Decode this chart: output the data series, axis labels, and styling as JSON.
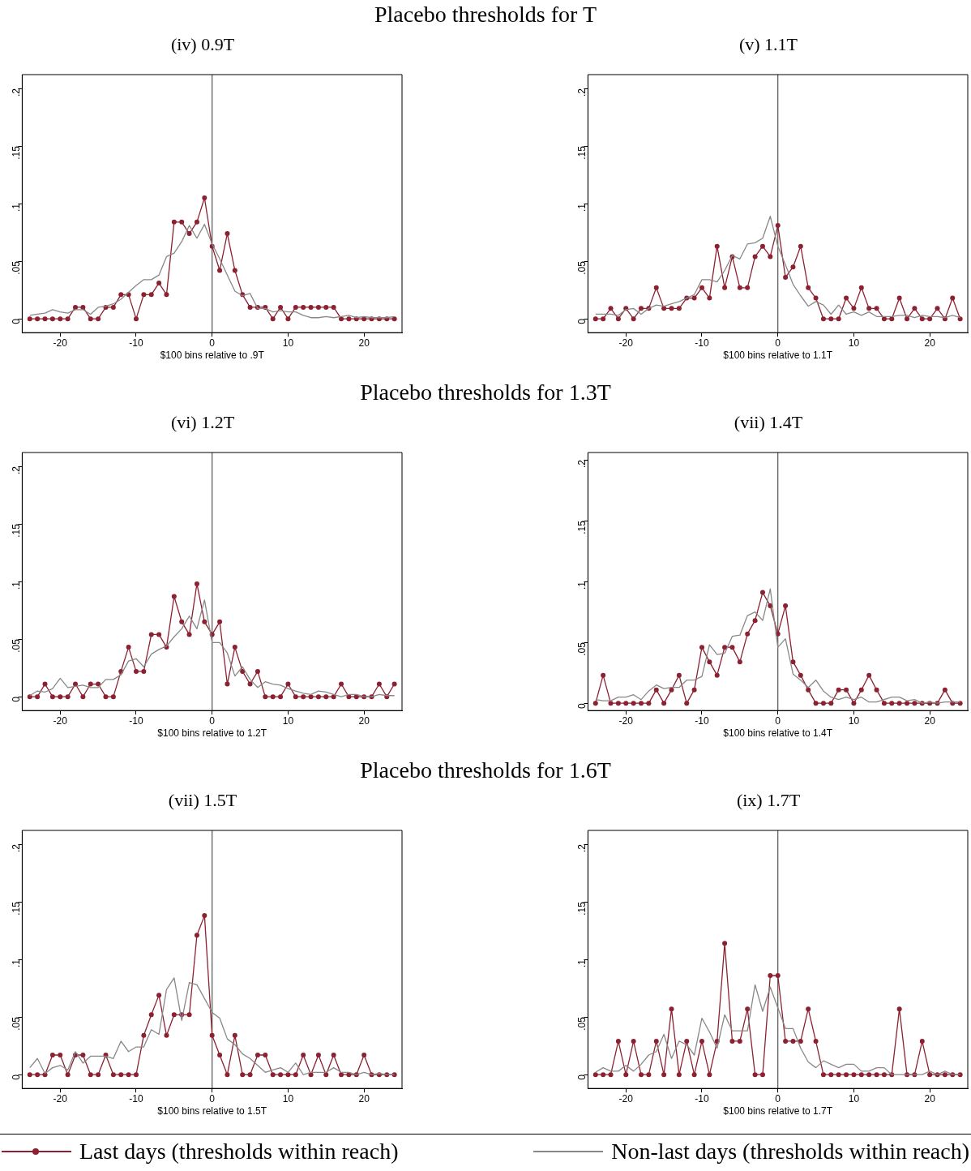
{
  "chart_data": [
    {
      "type": "line",
      "title": "(iv) 0.9T",
      "annotations": [
        "Placebo thresholds for T"
      ],
      "xlabel": "$100 bins relative to .9T",
      "legend": "bottom",
      "xlim": [
        -25,
        25
      ],
      "xticks": [
        -20,
        -10,
        0,
        10,
        20
      ],
      "ylim": [
        -0.012,
        0.212
      ],
      "yticks": [
        {
          "value": 0,
          "label": "0"
        },
        {
          "value": 0.05,
          "label": ".05"
        },
        {
          "value": 0.1,
          "label": ".1"
        },
        {
          "value": 0.15,
          "label": ".15"
        },
        {
          "value": 0.2,
          "label": ".2"
        }
      ],
      "grid": false,
      "ref_lines": [
        {
          "axis": "x",
          "value": 0,
          "color": "#555555"
        }
      ],
      "x": [
        -24,
        -23,
        -22,
        -21,
        -20,
        -19,
        -18,
        -17,
        -16,
        -15,
        -14,
        -13,
        -12,
        -11,
        -10,
        -9,
        -8,
        -7,
        -6,
        -5,
        -4,
        -3,
        -2,
        -1,
        0,
        1,
        2,
        3,
        4,
        5,
        6,
        7,
        8,
        9,
        10,
        11,
        12,
        13,
        14,
        15,
        16,
        17,
        18,
        19,
        20,
        21,
        22,
        23,
        24
      ],
      "series": [
        {
          "name": "Non-last days (thresholds within reach)",
          "color": "#888888",
          "marker": "none",
          "values": [
            0.003,
            0.004,
            0.005,
            0.008,
            0.006,
            0.005,
            0.008,
            0.008,
            0.004,
            0.01,
            0.011,
            0.013,
            0.017,
            0.023,
            0.029,
            0.034,
            0.034,
            0.038,
            0.054,
            0.057,
            0.067,
            0.081,
            0.07,
            0.082,
            0.065,
            0.052,
            0.038,
            0.024,
            0.02,
            0.022,
            0.009,
            0.009,
            0.006,
            0.007,
            0.006,
            0.006,
            0.003,
            0.001,
            0.001,
            0.002,
            0.001,
            0.002,
            0.003,
            0.001,
            0.002,
            0.001,
            0.001,
            0.001,
            0.002
          ]
        },
        {
          "name": "Last days (thresholds within reach)",
          "color": "#8b2131",
          "marker": "circle",
          "values": [
            0,
            0,
            0,
            0,
            0,
            0,
            0.01,
            0.01,
            0,
            0,
            0.01,
            0.01,
            0.021,
            0.021,
            0,
            0.021,
            0.021,
            0.031,
            0.021,
            0.084,
            0.084,
            0.074,
            0.084,
            0.105,
            0.063,
            0.042,
            0.074,
            0.042,
            0.021,
            0.01,
            0.01,
            0.01,
            0,
            0.01,
            0,
            0.01,
            0.01,
            0.01,
            0.01,
            0.01,
            0.01,
            0,
            0,
            0,
            0,
            0,
            0,
            0,
            0
          ]
        }
      ]
    },
    {
      "type": "line",
      "title": "(v) 1.1T",
      "xlabel": "$100 bins relative to 1.1T",
      "xlim": [
        -25,
        25
      ],
      "xticks": [
        -20,
        -10,
        0,
        10,
        20
      ],
      "ylim": [
        -0.012,
        0.212
      ],
      "yticks": [
        {
          "value": 0,
          "label": "0"
        },
        {
          "value": 0.05,
          "label": ".05"
        },
        {
          "value": 0.1,
          "label": ".1"
        },
        {
          "value": 0.15,
          "label": ".15"
        },
        {
          "value": 0.2,
          "label": ".2"
        }
      ],
      "grid": false,
      "ref_lines": [
        {
          "axis": "x",
          "value": 0,
          "color": "#555555"
        }
      ],
      "x": [
        -24,
        -23,
        -22,
        -21,
        -20,
        -19,
        -18,
        -17,
        -16,
        -15,
        -14,
        -13,
        -12,
        -11,
        -10,
        -9,
        -8,
        -7,
        -6,
        -5,
        -4,
        -3,
        -2,
        -1,
        0,
        1,
        2,
        3,
        4,
        5,
        6,
        7,
        8,
        9,
        10,
        11,
        12,
        13,
        14,
        15,
        16,
        17,
        18,
        19,
        20,
        21,
        22,
        23,
        24
      ],
      "series": [
        {
          "color": "#888888",
          "marker": "none",
          "values": [
            0.004,
            0.004,
            0.004,
            0.003,
            0.008,
            0.009,
            0.004,
            0.009,
            0.012,
            0.011,
            0.013,
            0.015,
            0.018,
            0.021,
            0.034,
            0.034,
            0.032,
            0.042,
            0.055,
            0.052,
            0.065,
            0.066,
            0.07,
            0.089,
            0.063,
            0.047,
            0.03,
            0.02,
            0.011,
            0.015,
            0.012,
            0.004,
            0.012,
            0.004,
            0.006,
            0.003,
            0.006,
            0.002,
            0.002,
            0.002,
            0.003,
            0.003,
            0.001,
            0.003,
            0.002,
            0.002,
            0.001,
            0.003,
            0.001
          ]
        },
        {
          "color": "#8b2131",
          "marker": "circle",
          "values": [
            0,
            0,
            0.009,
            0,
            0.009,
            0,
            0.009,
            0.009,
            0.027,
            0.009,
            0.009,
            0.009,
            0.018,
            0.018,
            0.027,
            0.018,
            0.063,
            0.027,
            0.054,
            0.027,
            0.027,
            0.054,
            0.063,
            0.054,
            0.081,
            0.036,
            0.045,
            0.063,
            0.027,
            0.018,
            0,
            0,
            0,
            0.018,
            0.009,
            0.027,
            0.009,
            0.009,
            0,
            0,
            0.018,
            0,
            0.009,
            0,
            0,
            0.009,
            0,
            0.018,
            0
          ]
        }
      ]
    },
    {
      "type": "line",
      "title": "(vi) 1.2T",
      "annotations": [
        "Placebo thresholds for 1.3T"
      ],
      "xlabel": "$100 bins relative to 1.2T",
      "xlim": [
        -25,
        25
      ],
      "xticks": [
        -20,
        -10,
        0,
        10,
        20
      ],
      "ylim": [
        -0.012,
        0.212
      ],
      "yticks": [
        {
          "value": 0,
          "label": "0"
        },
        {
          "value": 0.05,
          "label": ".05"
        },
        {
          "value": 0.1,
          "label": ".1"
        },
        {
          "value": 0.15,
          "label": ".15"
        },
        {
          "value": 0.2,
          "label": ".2"
        }
      ],
      "grid": false,
      "ref_lines": [
        {
          "axis": "x",
          "value": 0,
          "color": "#555555"
        }
      ],
      "x": [
        -24,
        -23,
        -22,
        -21,
        -20,
        -19,
        -18,
        -17,
        -16,
        -15,
        -14,
        -13,
        -12,
        -11,
        -10,
        -9,
        -8,
        -7,
        -6,
        -5,
        -4,
        -3,
        -2,
        -1,
        0,
        1,
        2,
        3,
        4,
        5,
        6,
        7,
        8,
        9,
        10,
        11,
        12,
        13,
        14,
        15,
        16,
        17,
        18,
        19,
        20,
        21,
        22,
        23,
        24
      ],
      "series": [
        {
          "color": "#888888",
          "marker": "none",
          "values": [
            0.001,
            0.005,
            0.004,
            0.007,
            0.016,
            0.008,
            0.009,
            0.01,
            0.008,
            0.008,
            0.015,
            0.015,
            0.019,
            0.031,
            0.033,
            0.026,
            0.037,
            0.041,
            0.044,
            0.052,
            0.059,
            0.07,
            0.059,
            0.084,
            0.047,
            0.047,
            0.038,
            0.018,
            0.026,
            0.015,
            0.008,
            0.013,
            0.011,
            0.01,
            0.007,
            0.005,
            0.003,
            0.002,
            0.005,
            0.004,
            0.002,
            0,
            0.002,
            0.002,
            0,
            0,
            0.002,
            0.001,
            0.001
          ]
        },
        {
          "color": "#8b2131",
          "marker": "circle",
          "values": [
            0,
            0,
            0.011,
            0,
            0,
            0,
            0.011,
            0,
            0.011,
            0.011,
            0,
            0,
            0.022,
            0.043,
            0.022,
            0.022,
            0.054,
            0.054,
            0.043,
            0.087,
            0.065,
            0.054,
            0.098,
            0.065,
            0.054,
            0.065,
            0.011,
            0.043,
            0.022,
            0.011,
            0.022,
            0,
            0,
            0,
            0.011,
            0,
            0,
            0,
            0,
            0,
            0,
            0.011,
            0,
            0,
            0,
            0,
            0.011,
            0,
            0.011
          ]
        }
      ]
    },
    {
      "type": "line",
      "title": "(vii) 1.4T",
      "xlabel": "$100 bins relative to 1.4T",
      "xlim": [
        -25,
        25
      ],
      "xticks": [
        -20,
        -10,
        0,
        10,
        20
      ],
      "ylim": [
        -0.006,
        0.206
      ],
      "yticks": [
        {
          "value": 0,
          "label": "0"
        },
        {
          "value": 0.05,
          "label": ".05"
        },
        {
          "value": 0.1,
          "label": ".1"
        },
        {
          "value": 0.15,
          "label": ".15"
        },
        {
          "value": 0.2,
          "label": ".2"
        }
      ],
      "grid": false,
      "ref_lines": [
        {
          "axis": "x",
          "value": 0,
          "color": "#555555"
        }
      ],
      "x": [
        -24,
        -23,
        -22,
        -21,
        -20,
        -19,
        -18,
        -17,
        -16,
        -15,
        -14,
        -13,
        -12,
        -11,
        -10,
        -9,
        -8,
        -7,
        -6,
        -5,
        -4,
        -3,
        -2,
        -1,
        0,
        1,
        2,
        3,
        4,
        5,
        6,
        7,
        8,
        9,
        10,
        11,
        12,
        13,
        14,
        15,
        16,
        17,
        18,
        19,
        20,
        21,
        22,
        23,
        24
      ],
      "series": [
        {
          "color": "#888888",
          "marker": "none",
          "values": [
            0.003,
            0.002,
            0.002,
            0.005,
            0.005,
            0.007,
            0.003,
            0.01,
            0.015,
            0.012,
            0.013,
            0.013,
            0.019,
            0.019,
            0.022,
            0.048,
            0.04,
            0.041,
            0.055,
            0.056,
            0.072,
            0.075,
            0.068,
            0.094,
            0.046,
            0.053,
            0.024,
            0.019,
            0.013,
            0.019,
            0.01,
            0.005,
            0.003,
            0.005,
            0.003,
            0.005,
            0.001,
            0.001,
            0.003,
            0.005,
            0.005,
            0.002,
            0.003,
            0,
            0.001,
            0,
            0.001,
            0.001,
            0.001
          ]
        },
        {
          "color": "#8b2131",
          "marker": "circle",
          "values": [
            0,
            0.023,
            0,
            0,
            0,
            0,
            0,
            0,
            0.011,
            0,
            0.011,
            0.023,
            0,
            0.011,
            0.046,
            0.034,
            0.023,
            0.046,
            0.046,
            0.034,
            0.057,
            0.068,
            0.091,
            0.08,
            0.057,
            0.08,
            0.034,
            0.023,
            0.011,
            0,
            0,
            0,
            0.011,
            0.011,
            0,
            0.011,
            0.023,
            0.011,
            0,
            0,
            0,
            0,
            0,
            0,
            0,
            0,
            0.011,
            0,
            0
          ]
        }
      ]
    },
    {
      "type": "line",
      "title": "(vii) 1.5T",
      "annotations": [
        "Placebo thresholds for 1.6T"
      ],
      "xlabel": "$100 bins relative to 1.5T",
      "xlim": [
        -25,
        25
      ],
      "xticks": [
        -20,
        -10,
        0,
        10,
        20
      ],
      "ylim": [
        -0.012,
        0.212
      ],
      "yticks": [
        {
          "value": 0,
          "label": "0"
        },
        {
          "value": 0.05,
          "label": ".05"
        },
        {
          "value": 0.1,
          "label": ".1"
        },
        {
          "value": 0.15,
          "label": ".15"
        },
        {
          "value": 0.2,
          "label": ".2"
        }
      ],
      "grid": false,
      "ref_lines": [
        {
          "axis": "x",
          "value": 0,
          "color": "#555555"
        }
      ],
      "x": [
        -24,
        -23,
        -22,
        -21,
        -20,
        -19,
        -18,
        -17,
        -16,
        -15,
        -14,
        -13,
        -12,
        -11,
        -10,
        -9,
        -8,
        -7,
        -6,
        -5,
        -4,
        -3,
        -2,
        -1,
        0,
        1,
        2,
        3,
        4,
        5,
        6,
        7,
        8,
        9,
        10,
        11,
        12,
        13,
        14,
        15,
        16,
        17,
        18,
        19,
        20,
        21,
        22,
        23,
        24
      ],
      "series": [
        {
          "color": "#888888",
          "marker": "none",
          "values": [
            0.006,
            0.014,
            0.001,
            0.006,
            0.008,
            0.004,
            0.02,
            0.01,
            0.016,
            0.016,
            0.016,
            0.014,
            0.029,
            0.02,
            0.024,
            0.024,
            0.039,
            0.035,
            0.074,
            0.084,
            0.047,
            0.08,
            0.078,
            0.066,
            0.054,
            0.049,
            0.031,
            0.026,
            0.018,
            0.014,
            0.008,
            0.002,
            0.004,
            0.006,
            0.002,
            0.01,
            0,
            0.002,
            0.002,
            0.002,
            0.006,
            0.002,
            0.002,
            0,
            0.002,
            0,
            0.001,
            0,
            0
          ]
        },
        {
          "color": "#8b2131",
          "marker": "circle",
          "values": [
            0,
            0,
            0,
            0.017,
            0.017,
            0,
            0.017,
            0.017,
            0,
            0,
            0.017,
            0,
            0,
            0,
            0,
            0.034,
            0.052,
            0.069,
            0.034,
            0.052,
            0.052,
            0.052,
            0.121,
            0.138,
            0.034,
            0.017,
            0,
            0.034,
            0,
            0,
            0.017,
            0.017,
            0,
            0,
            0,
            0,
            0.017,
            0,
            0.017,
            0,
            0.017,
            0,
            0,
            0,
            0.017,
            0,
            0,
            0,
            0
          ]
        }
      ]
    },
    {
      "type": "line",
      "title": "(ix) 1.7T",
      "xlabel": "$100 bins relative to 1.7T",
      "xlim": [
        -25,
        25
      ],
      "xticks": [
        -20,
        -10,
        0,
        10,
        20
      ],
      "ylim": [
        -0.012,
        0.212
      ],
      "yticks": [
        {
          "value": 0,
          "label": "0"
        },
        {
          "value": 0.05,
          "label": ".05"
        },
        {
          "value": 0.1,
          "label": ".1"
        },
        {
          "value": 0.15,
          "label": ".15"
        },
        {
          "value": 0.2,
          "label": ".2"
        }
      ],
      "grid": false,
      "ref_lines": [
        {
          "axis": "x",
          "value": 0,
          "color": "#555555"
        }
      ],
      "x": [
        -24,
        -23,
        -22,
        -21,
        -20,
        -19,
        -18,
        -17,
        -16,
        -15,
        -14,
        -13,
        -12,
        -11,
        -10,
        -9,
        -8,
        -7,
        -6,
        -5,
        -4,
        -3,
        -2,
        -1,
        0,
        1,
        2,
        3,
        4,
        5,
        6,
        7,
        8,
        9,
        10,
        11,
        12,
        13,
        14,
        15,
        16,
        17,
        18,
        19,
        20,
        21,
        22,
        23,
        24
      ],
      "series": [
        {
          "color": "#888888",
          "marker": "none",
          "values": [
            0.002,
            0.006,
            0.003,
            0.003,
            0.008,
            0.003,
            0.009,
            0.017,
            0.02,
            0.035,
            0.014,
            0.029,
            0.026,
            0.017,
            0.049,
            0.037,
            0.023,
            0.052,
            0.038,
            0.038,
            0.038,
            0.078,
            0.055,
            0.076,
            0.058,
            0.04,
            0.04,
            0.023,
            0.011,
            0.006,
            0.012,
            0.009,
            0.006,
            0.009,
            0.009,
            0.003,
            0.003,
            0.006,
            0.006,
            0,
            0,
            0,
            0,
            0,
            0.003,
            0,
            0.003,
            0,
            0
          ]
        },
        {
          "color": "#8b2131",
          "marker": "circle",
          "values": [
            0,
            0,
            0,
            0.029,
            0,
            0.029,
            0,
            0,
            0.029,
            0,
            0.057,
            0,
            0.029,
            0,
            0.029,
            0,
            0.029,
            0.114,
            0.029,
            0.029,
            0.057,
            0,
            0,
            0.086,
            0.086,
            0.029,
            0.029,
            0.029,
            0.057,
            0.029,
            0,
            0,
            0,
            0,
            0,
            0,
            0,
            0,
            0,
            0,
            0.057,
            0,
            0,
            0.029,
            0,
            0,
            0,
            0,
            0
          ]
        }
      ]
    }
  ]
}
